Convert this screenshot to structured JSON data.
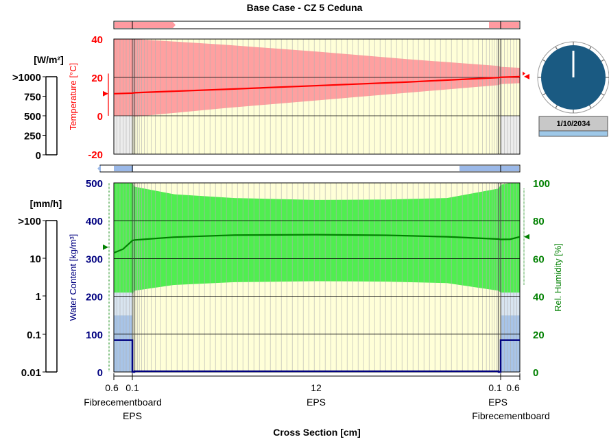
{
  "title": "Base Case - CZ 5 Ceduna",
  "date_label": "1/10/2034",
  "radiation_panel": {
    "unit": "[W/m²]",
    "ticks": [
      ">1000",
      "750",
      "500",
      "250",
      "0"
    ]
  },
  "rain_panel": {
    "unit": "[mm/h]",
    "ticks": [
      ">100",
      "10",
      "1",
      "0.1",
      "0.01"
    ]
  },
  "x_axis": {
    "label": "Cross Section [cm]",
    "layer_thickness_labels": [
      "0.6",
      "0.1",
      "12",
      "0.1",
      "0.6"
    ],
    "layer_names_row1": [
      "Fibrecementboard",
      "EPS",
      "EPS"
    ],
    "layer_names_row2": [
      "EPS",
      "Fibrecementboard"
    ]
  },
  "colors": {
    "temperature": "#ff0000",
    "temperature_band": "#ffa0a0",
    "humidity": "#008000",
    "humidity_band": "#50ee50",
    "water_content": "#000080",
    "water_band": "#a8c4e8",
    "background_fill": "#ffffd8",
    "clock_face": "#1a5a82"
  },
  "chart_data": [
    {
      "type": "line",
      "title": "Base Case - CZ 5 Ceduna",
      "xlabel": "Cross Section [cm]",
      "ylabel": "Temperature [°C]",
      "ylim": [
        -20,
        40
      ],
      "yticks": [
        "40",
        "20",
        "0",
        "-20"
      ],
      "x": [
        0,
        0.6,
        0.7,
        3.7,
        6.7,
        9.7,
        12.7,
        12.8,
        13.4
      ],
      "series": [
        {
          "name": "Temperature",
          "values": [
            11.5,
            11.8,
            12.0,
            13.8,
            15.7,
            17.6,
            19.9,
            20.1,
            20.4
          ]
        },
        {
          "name": "Temperature max",
          "values": [
            40,
            40,
            40,
            37,
            33.5,
            29.5,
            26,
            25.5,
            25
          ]
        },
        {
          "name": "Temperature min",
          "values": [
            0,
            0,
            -0.5,
            4,
            8,
            12,
            16,
            16.5,
            17
          ]
        }
      ]
    },
    {
      "type": "line",
      "xlabel": "Cross Section [cm]",
      "ylabel": "Water Content [kg/m³]",
      "ylim": [
        0,
        500
      ],
      "yticks": [
        "500",
        "400",
        "300",
        "200",
        "100",
        "0"
      ],
      "y2label": "Rel. Humidity [%]",
      "y2lim": [
        0,
        100
      ],
      "y2ticks": [
        "100",
        "80",
        "60",
        "40",
        "20",
        "0"
      ],
      "x": [
        0,
        0.3,
        0.6,
        0.7,
        2,
        4,
        6.7,
        9,
        11,
        12.7,
        12.8,
        13.1,
        13.4
      ],
      "series": [
        {
          "name": "Rel. Humidity",
          "axis": "right",
          "values": [
            63,
            65,
            69.5,
            69.8,
            71.3,
            72.4,
            72.6,
            72.3,
            71.5,
            70.3,
            70.1,
            70.2,
            71.5
          ]
        },
        {
          "name": "Rel. Humidity max",
          "axis": "right",
          "values": [
            100,
            100,
            100,
            98,
            94,
            92,
            91,
            91.2,
            92,
            97,
            99,
            100,
            100
          ]
        },
        {
          "name": "Rel. Humidity min",
          "axis": "right",
          "values": [
            40,
            40.5,
            41,
            43,
            46,
            47.5,
            48,
            47.8,
            47,
            43,
            42,
            41.5,
            41
          ]
        },
        {
          "name": "Water Content",
          "axis": "left",
          "x_index": "steps",
          "points": [
            [
              0,
              84
            ],
            [
              0.6,
              84
            ],
            [
              0.6,
              0
            ],
            [
              0.7,
              0
            ],
            [
              0.7,
              2
            ],
            [
              12.7,
              2
            ],
            [
              12.7,
              0
            ],
            [
              12.8,
              0
            ],
            [
              12.8,
              84
            ],
            [
              13.4,
              84
            ]
          ]
        }
      ]
    }
  ]
}
